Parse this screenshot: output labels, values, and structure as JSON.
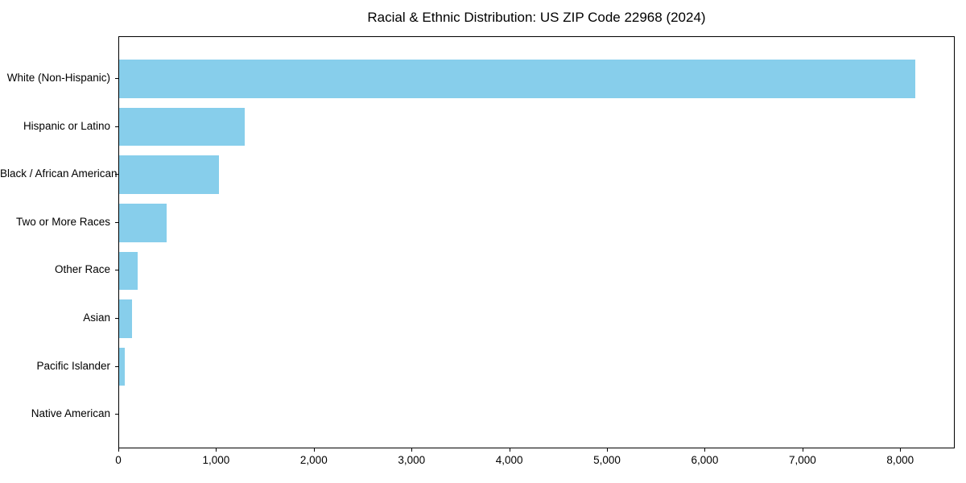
{
  "chart_data": {
    "type": "bar",
    "orientation": "horizontal",
    "title": "Racial & Ethnic Distribution: US ZIP Code 22968 (2024)",
    "categories": [
      "White (Non-Hispanic)",
      "Hispanic or Latino",
      "Black / African American",
      "Two or More Races",
      "Other Race",
      "Asian",
      "Pacific Islander",
      "Native American"
    ],
    "values": [
      8150,
      1285,
      1025,
      490,
      190,
      130,
      60,
      0
    ],
    "xlabel": "",
    "ylabel": "",
    "xlim": [
      0,
      8558
    ],
    "x_ticks": [
      0,
      1000,
      2000,
      3000,
      4000,
      5000,
      6000,
      7000,
      8000
    ],
    "x_tick_labels": [
      "0",
      "1,000",
      "2,000",
      "3,000",
      "4,000",
      "5,000",
      "6,000",
      "7,000",
      "8,000"
    ],
    "grid": false,
    "legend": null,
    "bar_color": "#87CEEB"
  },
  "colors": {
    "bar": "#87CEEB",
    "axis": "#000000",
    "text": "#000000",
    "background": "#ffffff"
  }
}
